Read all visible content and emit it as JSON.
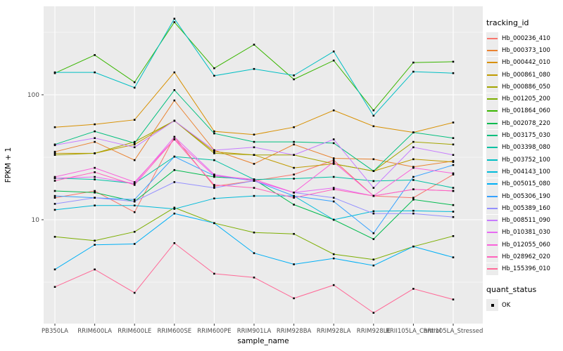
{
  "figure": {
    "y_axis": {
      "title": "FPKM + 1",
      "major_ticks": [
        {
          "label": "100",
          "value": 100
        },
        {
          "label": "10",
          "value": 10
        }
      ],
      "minor_breaks": [
        316.228,
        31.623,
        3.162
      ]
    },
    "x_axis": {
      "title": "sample_name"
    },
    "legend": {
      "tracking_title": "tracking_id",
      "quant_title": "quant_status",
      "quant_items": [
        {
          "label": "OK",
          "shape": "square",
          "color": "#000000"
        }
      ]
    },
    "colors": {
      "panel_bg": "#EBEBEB",
      "grid": "#FFFFFF",
      "tick_mark": "#333333",
      "tick_text": "#4D4D4D",
      "axis_title": "#000000",
      "point": "#000000",
      "legend_key_bg": "#ECECEC"
    }
  },
  "chart_data": {
    "type": "line",
    "title": "",
    "xlabel": "sample_name",
    "ylabel": "FPKM + 1",
    "y_scale": "log10",
    "ylim": [
      1.5,
      450
    ],
    "grid": true,
    "legend_position": "right",
    "point_marker": {
      "legend_name": "quant_status",
      "label": "OK",
      "shape": "square",
      "color": "#000000"
    },
    "categories": [
      "PB350LA",
      "RRIM600LA",
      "RRIM600LE",
      "RRIM600SE",
      "RRIM600PE",
      "RRIM901LA",
      "RRIM928BA",
      "RRIM928LA",
      "RRIM928LE",
      "RRII105LA_Control",
      "RRII105LA_Stressed"
    ],
    "series": [
      {
        "name": "Hb_000236_410",
        "color": "#F8766D",
        "values": [
          15,
          17,
          11.5,
          46,
          18.5,
          20.5,
          23,
          30,
          15.5,
          15,
          23
        ]
      },
      {
        "name": "Hb_000373_100",
        "color": "#EA8331",
        "values": [
          35,
          42,
          30,
          90,
          36,
          28,
          40,
          31,
          30.5,
          26.5,
          29.5
        ]
      },
      {
        "name": "Hb_000442_010",
        "color": "#D89000",
        "values": [
          55,
          58,
          63,
          151,
          51,
          48,
          55,
          75,
          56,
          50,
          60
        ]
      },
      {
        "name": "Hb_000861_080",
        "color": "#C09B00",
        "values": [
          34,
          34,
          40,
          62,
          35,
          33,
          26,
          28,
          24.5,
          30.5,
          29
        ]
      },
      {
        "name": "Hb_000886_050",
        "color": "#A3A500",
        "values": [
          33,
          34,
          42,
          62,
          34,
          33,
          33,
          28,
          24.5,
          42,
          40
        ]
      },
      {
        "name": "Hb_001205_200",
        "color": "#7CAE00",
        "values": [
          7.3,
          6.8,
          8,
          12.5,
          9.4,
          7.9,
          7.7,
          5.3,
          4.8,
          6.1,
          7.4
        ]
      },
      {
        "name": "Hb_001864_060",
        "color": "#39B600",
        "values": [
          149,
          208,
          126,
          381,
          163,
          252,
          133,
          188,
          75,
          181,
          184
        ]
      },
      {
        "name": "Hb_002078_220",
        "color": "#00BB4E",
        "values": [
          17,
          16.5,
          14,
          25,
          22,
          21,
          13.2,
          10,
          7.0,
          14.5,
          13.1
        ]
      },
      {
        "name": "Hb_003175_030",
        "color": "#00BF7D",
        "values": [
          40,
          51,
          41,
          109,
          49,
          42,
          42,
          41,
          24.5,
          50,
          45
        ]
      },
      {
        "name": "Hb_003398_080",
        "color": "#00C1A3",
        "values": [
          21.5,
          21,
          19.5,
          32,
          30,
          21,
          21.3,
          22,
          20.4,
          20.8,
          18
        ]
      },
      {
        "name": "Hb_003752_100",
        "color": "#00BFC4",
        "values": [
          151,
          151,
          114,
          406,
          142,
          161,
          143,
          222,
          68,
          153,
          149
        ]
      },
      {
        "name": "Hb_004143_100",
        "color": "#00BBDA",
        "values": [
          12,
          13,
          13,
          12.2,
          14.8,
          15.5,
          15.5,
          10,
          11.7,
          11.8,
          11.6
        ]
      },
      {
        "name": "Hb_005015_080",
        "color": "#00B0F6",
        "values": [
          4.0,
          6.3,
          6.4,
          11.2,
          9.4,
          5.4,
          4.4,
          4.9,
          4.3,
          6.1,
          5.0
        ]
      },
      {
        "name": "Hb_005306_190",
        "color": "#35A2FF",
        "values": [
          15.5,
          15,
          14.5,
          32,
          22.5,
          20.5,
          15.5,
          14,
          7.8,
          22,
          27.4
        ]
      },
      {
        "name": "Hb_005389_160",
        "color": "#9590FF",
        "values": [
          13.4,
          15,
          14,
          20,
          18,
          20.5,
          16.5,
          15,
          11.2,
          11.2,
          10.5
        ]
      },
      {
        "name": "Hb_008511_090",
        "color": "#C77CFF",
        "values": [
          39.5,
          45,
          38,
          62,
          36,
          38,
          33,
          44,
          18,
          38,
          33
        ]
      },
      {
        "name": "Hb_010381_030",
        "color": "#E76BF3",
        "values": [
          21.5,
          22,
          19.5,
          46,
          23,
          20.5,
          16.5,
          18,
          15.5,
          17.5,
          17
        ]
      },
      {
        "name": "Hb_012055_060",
        "color": "#FA62DB",
        "values": [
          22,
          26,
          20,
          44,
          22.5,
          21,
          16.5,
          29,
          15.5,
          26,
          23.5
        ]
      },
      {
        "name": "Hb_028962_020",
        "color": "#FF62BC",
        "values": [
          20.5,
          24,
          19,
          44,
          19,
          18,
          15,
          17.5,
          15.5,
          17.5,
          17
        ]
      },
      {
        "name": "Hb_155396_010",
        "color": "#FF6A98",
        "values": [
          2.9,
          4.0,
          2.6,
          6.5,
          3.7,
          3.45,
          2.35,
          3.0,
          1.8,
          2.8,
          2.3
        ]
      }
    ]
  }
}
